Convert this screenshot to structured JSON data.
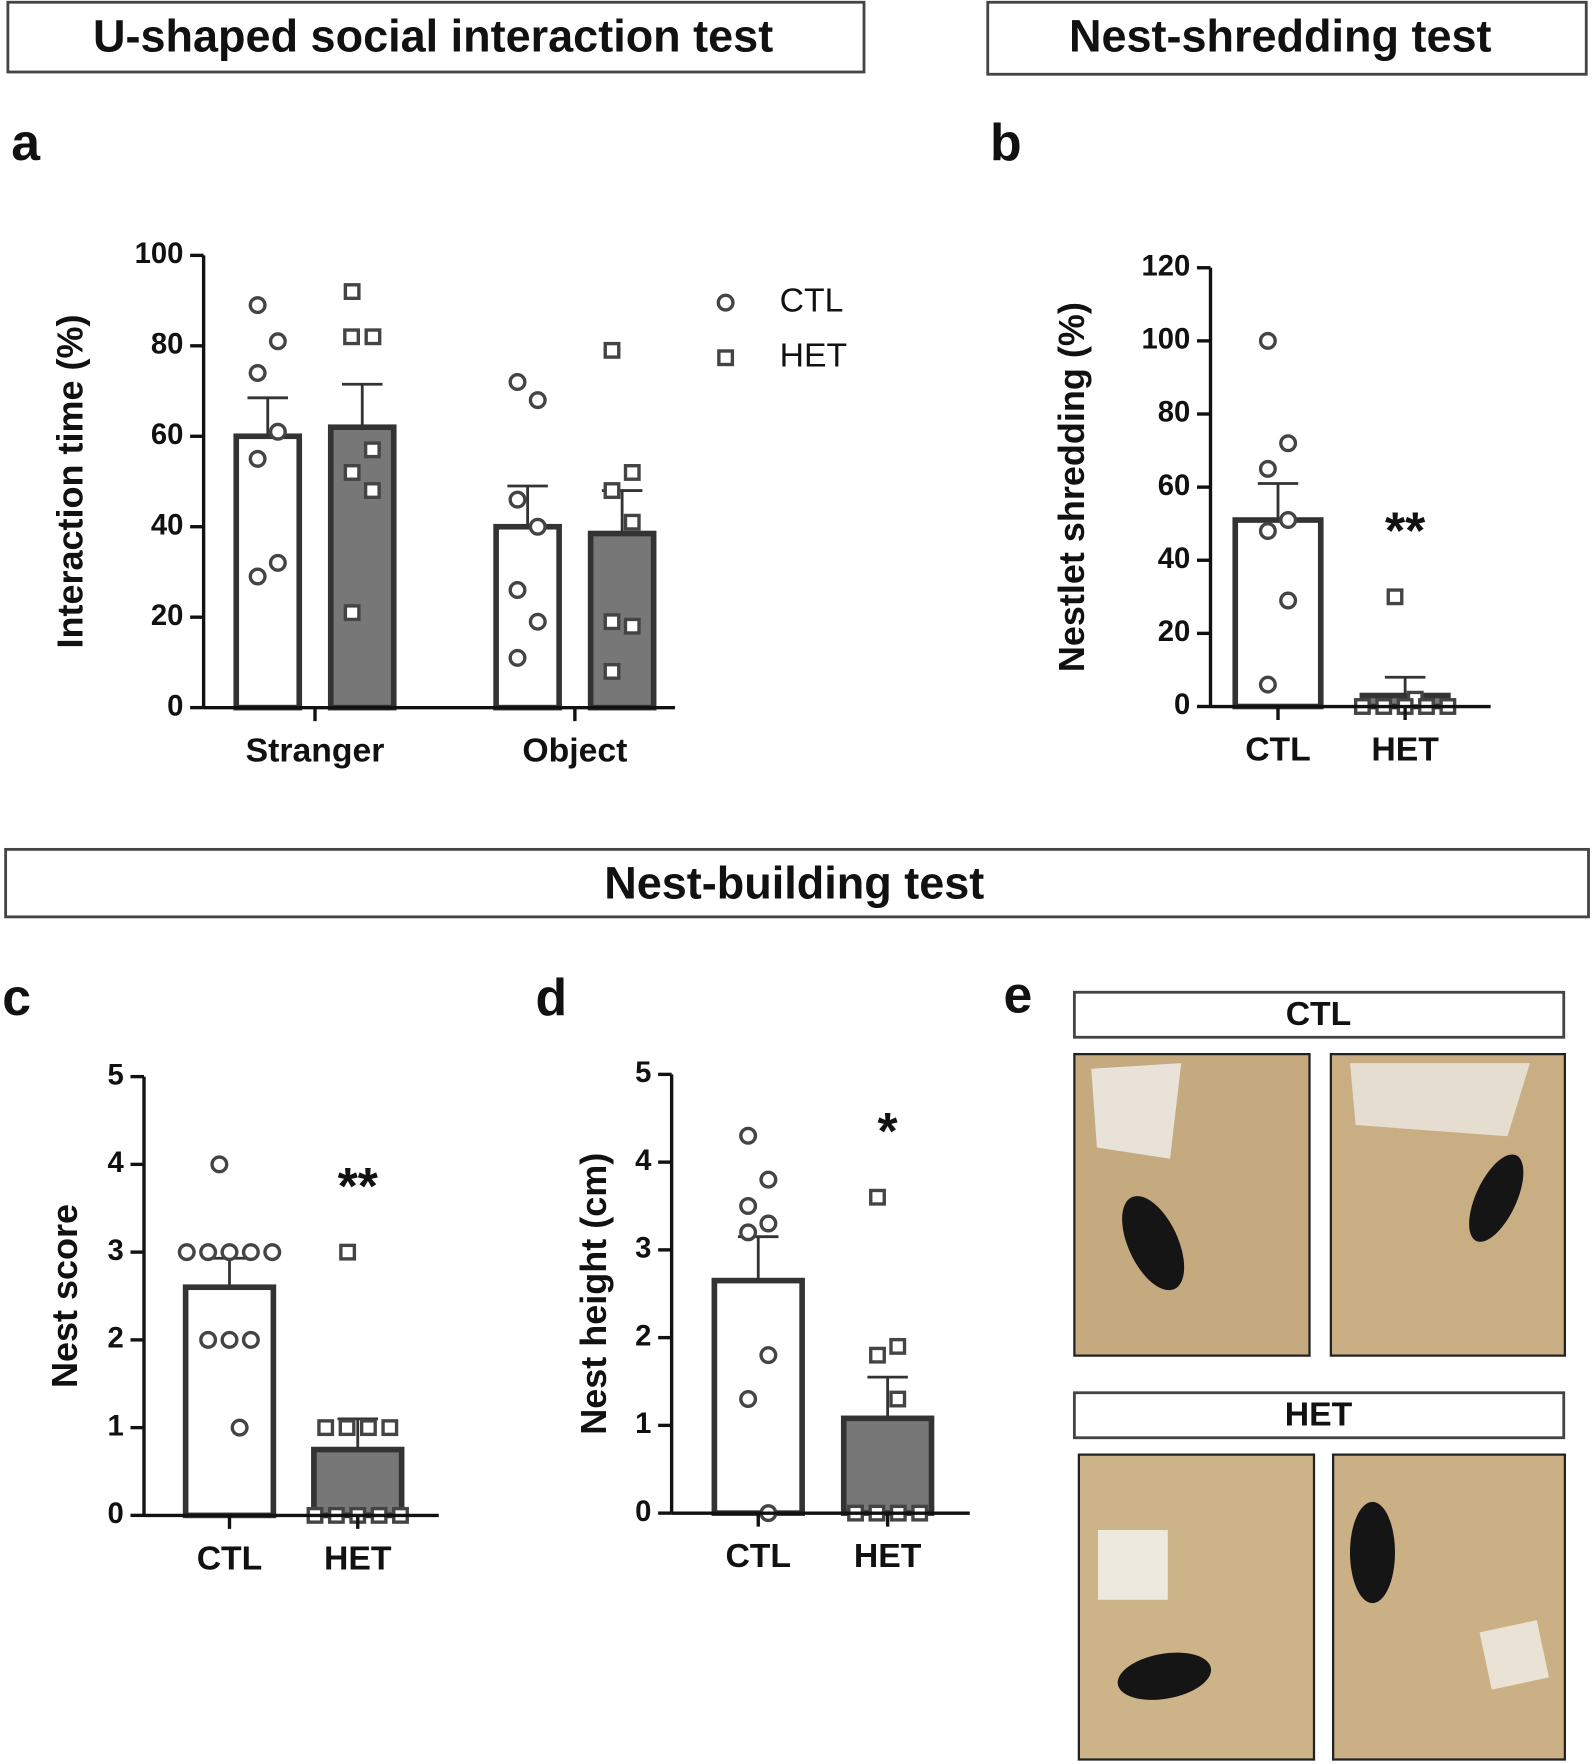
{
  "section_titles": [
    "U-shaped social interaction test",
    "Nest-shredding test",
    "Nest-building test"
  ],
  "chart_data": [
    {
      "panel": "a",
      "type": "bar",
      "ylabel": "Interaction time (%)",
      "categories": [
        "Stranger",
        "Object"
      ],
      "ylim": [
        0,
        100
      ],
      "yticks": [
        0,
        20,
        40,
        60,
        80,
        100
      ],
      "series": [
        {
          "name": "CTL",
          "color": "#ffffff",
          "marker": "circle",
          "values": [
            60,
            40
          ],
          "errors": [
            8.5,
            9
          ],
          "points": [
            [
              89,
              81,
              74,
              61,
              55,
              32,
              29
            ],
            [
              72,
              68,
              46,
              40,
              26,
              19,
              11
            ]
          ]
        },
        {
          "name": "HET",
          "color": "#777777",
          "marker": "square",
          "values": [
            62,
            38.5
          ],
          "errors": [
            9.5,
            9.5
          ],
          "points": [
            [
              92,
              82,
              82,
              57,
              52,
              48,
              21
            ],
            [
              79,
              52,
              48,
              41,
              19,
              18,
              8
            ]
          ]
        }
      ]
    },
    {
      "panel": "b",
      "type": "bar",
      "ylabel": "Nestlet shredding (%)",
      "categories": [
        "CTL",
        "HET"
      ],
      "colors": [
        "#ffffff",
        "#777777"
      ],
      "markers": [
        "circle",
        "square"
      ],
      "values": [
        51,
        3
      ],
      "errors": [
        10,
        5
      ],
      "points": [
        [
          100,
          72,
          65,
          51,
          48,
          29,
          6
        ],
        [
          30,
          2,
          0,
          0,
          0,
          0,
          0
        ]
      ],
      "ylim": [
        0,
        120
      ],
      "yticks": [
        0,
        20,
        40,
        60,
        80,
        100,
        120
      ],
      "annotation": "**"
    },
    {
      "panel": "c",
      "type": "bar",
      "ylabel": "Nest score",
      "categories": [
        "CTL",
        "HET"
      ],
      "colors": [
        "#ffffff",
        "#777777"
      ],
      "markers": [
        "circle",
        "square"
      ],
      "values": [
        2.6,
        0.75
      ],
      "errors": [
        0.33,
        0.35
      ],
      "points": [
        [
          4,
          3,
          3,
          3,
          3,
          3,
          2,
          2,
          2,
          1
        ],
        [
          3,
          1,
          1,
          1,
          1,
          0,
          0,
          0,
          0,
          0
        ]
      ],
      "ylim": [
        0,
        5
      ],
      "yticks": [
        0,
        1,
        2,
        3,
        4,
        5
      ],
      "annotation": "**"
    },
    {
      "panel": "d",
      "type": "bar",
      "ylabel": "Nest height (cm)",
      "categories": [
        "CTL",
        "HET"
      ],
      "colors": [
        "#ffffff",
        "#777777"
      ],
      "markers": [
        "circle",
        "square"
      ],
      "values": [
        2.65,
        1.08
      ],
      "errors": [
        0.5,
        0.47
      ],
      "points": [
        [
          4.3,
          3.8,
          3.5,
          3.3,
          3.2,
          1.8,
          1.3,
          0
        ],
        [
          3.6,
          1.9,
          1.8,
          1.3,
          0,
          0,
          0,
          0
        ]
      ],
      "ylim": [
        0,
        5
      ],
      "yticks": [
        0,
        1,
        2,
        3,
        4,
        5
      ],
      "annotation": "*"
    }
  ],
  "photo_panel": {
    "panel": "e",
    "groups": [
      "CTL",
      "HET"
    ]
  }
}
